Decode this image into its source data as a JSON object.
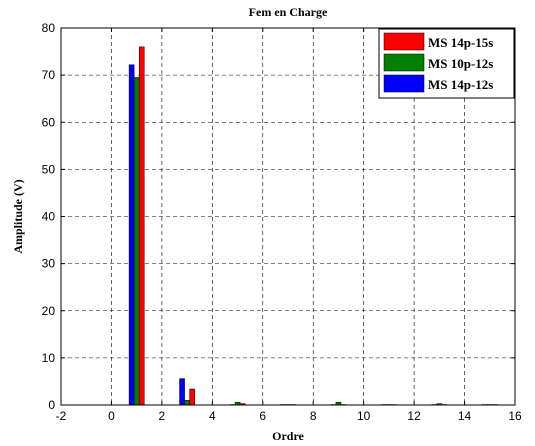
{
  "chart_data": {
    "type": "bar",
    "title": "Fem en Charge",
    "xlabel": "Ordre",
    "ylabel": "Amplitude (V)",
    "xlim": [
      -2,
      16
    ],
    "ylim": [
      0,
      80
    ],
    "xticks": [
      "-2",
      "0",
      "2",
      "4",
      "6",
      "8",
      "10",
      "12",
      "14",
      "16"
    ],
    "yticks": [
      "0",
      "10",
      "20",
      "30",
      "40",
      "50",
      "60",
      "70",
      "80"
    ],
    "grid": "dashed",
    "legend_position": "top-right",
    "legend_order": [
      "MS 14p-15s",
      "MS 10p-12s",
      "MS 14p-12s"
    ],
    "series": [
      {
        "name": "MS 14p-12s",
        "color": "#0000ff",
        "x": [
          1,
          3,
          5,
          7,
          9,
          11,
          13,
          15
        ],
        "values": [
          72.2,
          5.6,
          0.1,
          0.1,
          0.1,
          0.1,
          0.1,
          0.1
        ]
      },
      {
        "name": "MS 10p-12s",
        "color": "#008000",
        "x": [
          1,
          3,
          5,
          7,
          9,
          11,
          13,
          15
        ],
        "values": [
          69.5,
          1.0,
          0.6,
          0.1,
          0.6,
          0.1,
          0.3,
          0.1
        ]
      },
      {
        "name": "MS 14p-15s",
        "color": "#ff0000",
        "x": [
          1,
          3,
          5,
          7,
          9,
          11,
          13,
          15
        ],
        "values": [
          76.0,
          3.4,
          0.3,
          0.1,
          0.1,
          0.1,
          0.1,
          0.1
        ]
      }
    ]
  }
}
